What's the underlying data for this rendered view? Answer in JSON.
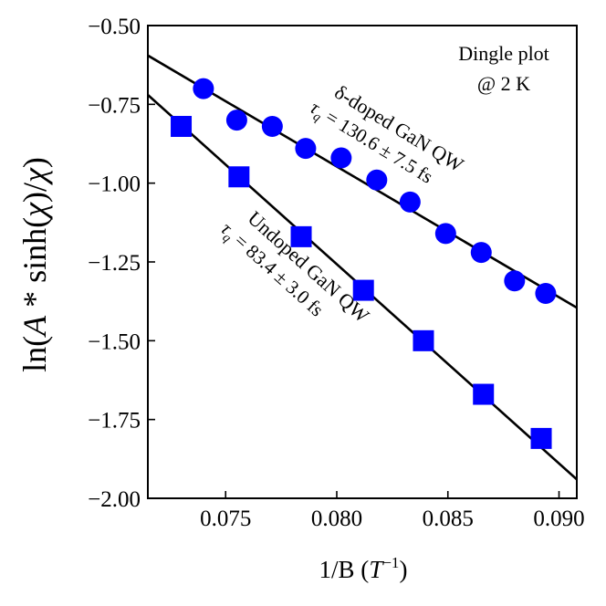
{
  "chart_data": {
    "type": "scatter",
    "title": "",
    "xlabel": "1/B (T⁻¹)",
    "xlabel_main": "1/B (",
    "xlabel_var": "T",
    "xlabel_exp": "−1",
    "xlabel_close": ")",
    "ylabel": "ln(A * sinh(χ)/χ)",
    "xlim": [
      0.0715,
      0.0908
    ],
    "ylim": [
      -2.0,
      -0.5
    ],
    "xticks": [
      0.075,
      0.08,
      0.085,
      0.09
    ],
    "xtick_labels": [
      "0.075",
      "0.080",
      "0.085",
      "0.090"
    ],
    "yticks": [
      -2.0,
      -1.75,
      -1.5,
      -1.25,
      -1.0,
      -0.75,
      -0.5
    ],
    "ytick_labels": [
      "−2.00",
      "−1.75",
      "−1.50",
      "−1.25",
      "−1.00",
      "−0.75",
      "−0.50"
    ],
    "grid": false,
    "series": [
      {
        "name": "δ-doped GaN QW",
        "marker": "circle",
        "color": "#0000ff",
        "x": [
          0.074,
          0.0755,
          0.0771,
          0.0786,
          0.0802,
          0.0818,
          0.0833,
          0.0849,
          0.0865,
          0.088,
          0.0894
        ],
        "y": [
          -0.7,
          -0.8,
          -0.82,
          -0.89,
          -0.92,
          -0.99,
          -1.06,
          -1.16,
          -1.22,
          -1.31,
          -1.35
        ],
        "fit": {
          "x": [
            0.0715,
            0.0908
          ],
          "y": [
            -0.595,
            -1.395
          ],
          "color": "#000000"
        }
      },
      {
        "name": "Undoped GaN QW",
        "marker": "square",
        "color": "#0000ff",
        "x": [
          0.073,
          0.0756,
          0.0784,
          0.0812,
          0.0839,
          0.0866,
          0.0892
        ],
        "y": [
          -0.82,
          -0.98,
          -1.17,
          -1.34,
          -1.5,
          -1.67,
          -1.81
        ],
        "fit": {
          "x": [
            0.0715,
            0.0908
          ],
          "y": [
            -0.72,
            -1.94
          ],
          "color": "#000000"
        }
      }
    ],
    "annotations": {
      "dingle_line1": "Dingle plot",
      "dingle_line2": "@ 2 K",
      "delta_name": "δ-doped GaN QW",
      "delta_tau_value": " = 130.6 ± 7.5 fs",
      "undoped_name": "Undoped GaN QW",
      "undoped_tau_value": " = 83.4 ± 3.0 fs",
      "tau_symbol": "τ",
      "tau_subscript": "q"
    }
  }
}
